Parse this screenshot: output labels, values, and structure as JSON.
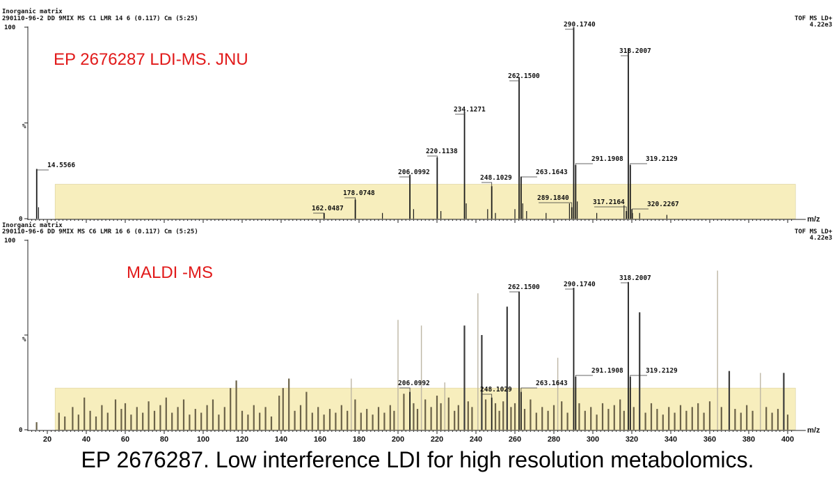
{
  "caption": "EP 2676287. Low interference LDI for high resolution metabolomics.",
  "colors": {
    "highlight": "#f7eebd",
    "highlight_stroke": "#d9cf9a",
    "annotation": "#e11a1a",
    "peak": "#1a1a1a",
    "noise": "#6b6248"
  },
  "chart_data": [
    {
      "type": "bar",
      "title": "Inorganic matrix",
      "subtitle": "290110-96-2 DD 9MIX MS C1 LMR 14 6 (0.117) Cm (5:25)",
      "mode_label": "TOF MS LD+",
      "intensity_label": "4.22e3",
      "annotation": "EP 2676287 LDI-MS. JNU",
      "ylabel": "%",
      "xlabel": "m/z",
      "y_ticks": [
        "100",
        "%",
        "0"
      ],
      "xlim": [
        10,
        403
      ],
      "ylim": [
        0,
        100
      ],
      "highlight_range": [
        24,
        404
      ],
      "highlight_level": 18,
      "labeled_peaks": [
        {
          "mz": 14.5566,
          "label": "14.5566",
          "intensity": 26
        },
        {
          "mz": 162.0487,
          "label": "162.0487",
          "intensity": 3
        },
        {
          "mz": 178.0748,
          "label": "178.0748",
          "intensity": 10
        },
        {
          "mz": 206.0992,
          "label": "206.0992",
          "intensity": 23
        },
        {
          "mz": 220.1138,
          "label": "220.1138",
          "intensity": 32
        },
        {
          "mz": 234.1271,
          "label": "234.1271",
          "intensity": 56
        },
        {
          "mz": 248.1029,
          "label": "248.1029",
          "intensity": 17
        },
        {
          "mz": 262.15,
          "label": "262.1500",
          "intensity": 74
        },
        {
          "mz": 263.1643,
          "label": "263.1643",
          "intensity": 22
        },
        {
          "mz": 289.184,
          "label": "289.1840",
          "intensity": 6
        },
        {
          "mz": 290.174,
          "label": "290.1740",
          "intensity": 100
        },
        {
          "mz": 291.1908,
          "label": "291.1908",
          "intensity": 28
        },
        {
          "mz": 317.2164,
          "label": "317.2164",
          "intensity": 4
        },
        {
          "mz": 318.2007,
          "label": "318.2007",
          "intensity": 89
        },
        {
          "mz": 319.2129,
          "label": "319.2129",
          "intensity": 28
        },
        {
          "mz": 320.2267,
          "label": "320.2267",
          "intensity": 3
        }
      ],
      "minor_peaks": [
        {
          "mz": 15.5,
          "intensity": 6
        },
        {
          "mz": 192,
          "intensity": 3
        },
        {
          "mz": 208,
          "intensity": 5
        },
        {
          "mz": 222,
          "intensity": 4
        },
        {
          "mz": 235,
          "intensity": 8
        },
        {
          "mz": 246,
          "intensity": 5
        },
        {
          "mz": 250,
          "intensity": 3
        },
        {
          "mz": 260,
          "intensity": 5
        },
        {
          "mz": 264,
          "intensity": 8
        },
        {
          "mz": 266,
          "intensity": 4
        },
        {
          "mz": 276,
          "intensity": 3
        },
        {
          "mz": 288,
          "intensity": 8
        },
        {
          "mz": 292,
          "intensity": 9
        },
        {
          "mz": 302,
          "intensity": 3
        },
        {
          "mz": 316,
          "intensity": 7
        },
        {
          "mz": 320,
          "intensity": 5
        },
        {
          "mz": 324,
          "intensity": 3
        },
        {
          "mz": 338,
          "intensity": 2
        }
      ]
    },
    {
      "type": "bar",
      "title": "Inorganic matrix",
      "subtitle": "290110-96-6 DD 9MIX MS C6 LMR 16 6 (0.117) Cm (5:25)",
      "mode_label": "TOF MS LD+",
      "intensity_label": "4.22e3",
      "annotation": "MALDI -MS",
      "ylabel": "%",
      "xlabel": "m/z",
      "y_ticks": [
        "100",
        "%",
        "0"
      ],
      "x_ticks": [
        20,
        40,
        60,
        80,
        100,
        120,
        140,
        160,
        180,
        200,
        220,
        240,
        260,
        280,
        300,
        320,
        340,
        360,
        380,
        400
      ],
      "xlim": [
        10,
        403
      ],
      "ylim": [
        0,
        100
      ],
      "highlight_range": [
        24,
        404
      ],
      "highlight_level": 22,
      "labeled_peaks": [
        {
          "mz": 206.0992,
          "label": "206.0992",
          "intensity": 20
        },
        {
          "mz": 248.1029,
          "label": "248.1029",
          "intensity": 17
        },
        {
          "mz": 262.15,
          "label": "262.1500",
          "intensity": 73
        },
        {
          "mz": 263.1643,
          "label": "263.1643",
          "intensity": 20
        },
        {
          "mz": 290.174,
          "label": "290.1740",
          "intensity": 75
        },
        {
          "mz": 291.1908,
          "label": "291.1908",
          "intensity": 28
        },
        {
          "mz": 318.2007,
          "label": "318.2007",
          "intensity": 78
        },
        {
          "mz": 319.2129,
          "label": "319.2129",
          "intensity": 28
        }
      ],
      "major_unlabeled_peaks": [
        {
          "mz": 234.1,
          "intensity": 55
        },
        {
          "mz": 256.0,
          "intensity": 65
        },
        {
          "mz": 243.0,
          "intensity": 50
        },
        {
          "mz": 324.0,
          "intensity": 62
        },
        {
          "mz": 398.0,
          "intensity": 30
        },
        {
          "mz": 370.0,
          "intensity": 31
        }
      ],
      "faint_peaks": [
        {
          "mz": 200,
          "intensity": 58
        },
        {
          "mz": 212,
          "intensity": 55
        },
        {
          "mz": 241,
          "intensity": 72
        },
        {
          "mz": 282,
          "intensity": 38
        },
        {
          "mz": 364,
          "intensity": 84
        },
        {
          "mz": 386,
          "intensity": 30
        },
        {
          "mz": 224,
          "intensity": 25
        },
        {
          "mz": 176,
          "intensity": 27
        }
      ],
      "noise_peaks": [
        {
          "mz": 14.5,
          "intensity": 4
        },
        {
          "mz": 26,
          "intensity": 9
        },
        {
          "mz": 29,
          "intensity": 7
        },
        {
          "mz": 33,
          "intensity": 12
        },
        {
          "mz": 36,
          "intensity": 8
        },
        {
          "mz": 39,
          "intensity": 17
        },
        {
          "mz": 42,
          "intensity": 10
        },
        {
          "mz": 45,
          "intensity": 7
        },
        {
          "mz": 48,
          "intensity": 13
        },
        {
          "mz": 51,
          "intensity": 9
        },
        {
          "mz": 55,
          "intensity": 16
        },
        {
          "mz": 58,
          "intensity": 11
        },
        {
          "mz": 60,
          "intensity": 14
        },
        {
          "mz": 63,
          "intensity": 8
        },
        {
          "mz": 66,
          "intensity": 12
        },
        {
          "mz": 69,
          "intensity": 9
        },
        {
          "mz": 72,
          "intensity": 15
        },
        {
          "mz": 75,
          "intensity": 10
        },
        {
          "mz": 78,
          "intensity": 13
        },
        {
          "mz": 81,
          "intensity": 17
        },
        {
          "mz": 84,
          "intensity": 9
        },
        {
          "mz": 87,
          "intensity": 12
        },
        {
          "mz": 90,
          "intensity": 16
        },
        {
          "mz": 93,
          "intensity": 8
        },
        {
          "mz": 96,
          "intensity": 11
        },
        {
          "mz": 99,
          "intensity": 9
        },
        {
          "mz": 102,
          "intensity": 13
        },
        {
          "mz": 105,
          "intensity": 16
        },
        {
          "mz": 108,
          "intensity": 8
        },
        {
          "mz": 111,
          "intensity": 12
        },
        {
          "mz": 114,
          "intensity": 22
        },
        {
          "mz": 117,
          "intensity": 26
        },
        {
          "mz": 120,
          "intensity": 10
        },
        {
          "mz": 123,
          "intensity": 8
        },
        {
          "mz": 126,
          "intensity": 13
        },
        {
          "mz": 129,
          "intensity": 9
        },
        {
          "mz": 132,
          "intensity": 12
        },
        {
          "mz": 135,
          "intensity": 7
        },
        {
          "mz": 139,
          "intensity": 18
        },
        {
          "mz": 141,
          "intensity": 22
        },
        {
          "mz": 144,
          "intensity": 27
        },
        {
          "mz": 147,
          "intensity": 10
        },
        {
          "mz": 150,
          "intensity": 13
        },
        {
          "mz": 153,
          "intensity": 20
        },
        {
          "mz": 156,
          "intensity": 9
        },
        {
          "mz": 159,
          "intensity": 12
        },
        {
          "mz": 162,
          "intensity": 8
        },
        {
          "mz": 165,
          "intensity": 11
        },
        {
          "mz": 168,
          "intensity": 9
        },
        {
          "mz": 171,
          "intensity": 13
        },
        {
          "mz": 174,
          "intensity": 10
        },
        {
          "mz": 178,
          "intensity": 16
        },
        {
          "mz": 181,
          "intensity": 9
        },
        {
          "mz": 184,
          "intensity": 11
        },
        {
          "mz": 187,
          "intensity": 8
        },
        {
          "mz": 190,
          "intensity": 12
        },
        {
          "mz": 193,
          "intensity": 9
        },
        {
          "mz": 196,
          "intensity": 13
        },
        {
          "mz": 198,
          "intensity": 10
        },
        {
          "mz": 203,
          "intensity": 19
        },
        {
          "mz": 208,
          "intensity": 14
        },
        {
          "mz": 210,
          "intensity": 11
        },
        {
          "mz": 214,
          "intensity": 16
        },
        {
          "mz": 217,
          "intensity": 12
        },
        {
          "mz": 220,
          "intensity": 18
        },
        {
          "mz": 222,
          "intensity": 14
        },
        {
          "mz": 226,
          "intensity": 17
        },
        {
          "mz": 229,
          "intensity": 10
        },
        {
          "mz": 231,
          "intensity": 13
        },
        {
          "mz": 236,
          "intensity": 15
        },
        {
          "mz": 238,
          "intensity": 12
        },
        {
          "mz": 245,
          "intensity": 16
        },
        {
          "mz": 250,
          "intensity": 14
        },
        {
          "mz": 252,
          "intensity": 10
        },
        {
          "mz": 254,
          "intensity": 15
        },
        {
          "mz": 258,
          "intensity": 12
        },
        {
          "mz": 260,
          "intensity": 14
        },
        {
          "mz": 265,
          "intensity": 11
        },
        {
          "mz": 268,
          "intensity": 16
        },
        {
          "mz": 271,
          "intensity": 9
        },
        {
          "mz": 274,
          "intensity": 12
        },
        {
          "mz": 277,
          "intensity": 10
        },
        {
          "mz": 280,
          "intensity": 13
        },
        {
          "mz": 284,
          "intensity": 15
        },
        {
          "mz": 287,
          "intensity": 9
        },
        {
          "mz": 293,
          "intensity": 14
        },
        {
          "mz": 296,
          "intensity": 10
        },
        {
          "mz": 299,
          "intensity": 12
        },
        {
          "mz": 302,
          "intensity": 8
        },
        {
          "mz": 305,
          "intensity": 14
        },
        {
          "mz": 308,
          "intensity": 11
        },
        {
          "mz": 311,
          "intensity": 13
        },
        {
          "mz": 314,
          "intensity": 16
        },
        {
          "mz": 316,
          "intensity": 10
        },
        {
          "mz": 321,
          "intensity": 12
        },
        {
          "mz": 327,
          "intensity": 9
        },
        {
          "mz": 330,
          "intensity": 14
        },
        {
          "mz": 333,
          "intensity": 11
        },
        {
          "mz": 336,
          "intensity": 8
        },
        {
          "mz": 339,
          "intensity": 12
        },
        {
          "mz": 342,
          "intensity": 9
        },
        {
          "mz": 345,
          "intensity": 13
        },
        {
          "mz": 348,
          "intensity": 10
        },
        {
          "mz": 351,
          "intensity": 12
        },
        {
          "mz": 354,
          "intensity": 14
        },
        {
          "mz": 357,
          "intensity": 9
        },
        {
          "mz": 360,
          "intensity": 15
        },
        {
          "mz": 366,
          "intensity": 12
        },
        {
          "mz": 373,
          "intensity": 11
        },
        {
          "mz": 376,
          "intensity": 9
        },
        {
          "mz": 379,
          "intensity": 13
        },
        {
          "mz": 382,
          "intensity": 10
        },
        {
          "mz": 389,
          "intensity": 12
        },
        {
          "mz": 392,
          "intensity": 9
        },
        {
          "mz": 395,
          "intensity": 11
        },
        {
          "mz": 400,
          "intensity": 8
        }
      ]
    }
  ]
}
